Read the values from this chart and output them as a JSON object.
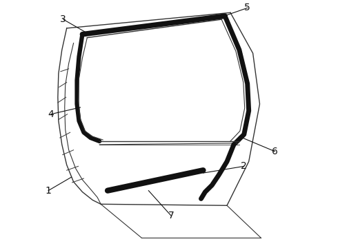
{
  "background_color": "#ffffff",
  "line_color": "#333333",
  "thick_color": "#111111",
  "thin_color": "#555555",
  "label_color": "#111111",
  "label_fontsize": 10,
  "figsize": [
    4.9,
    3.6
  ],
  "dpi": 100
}
